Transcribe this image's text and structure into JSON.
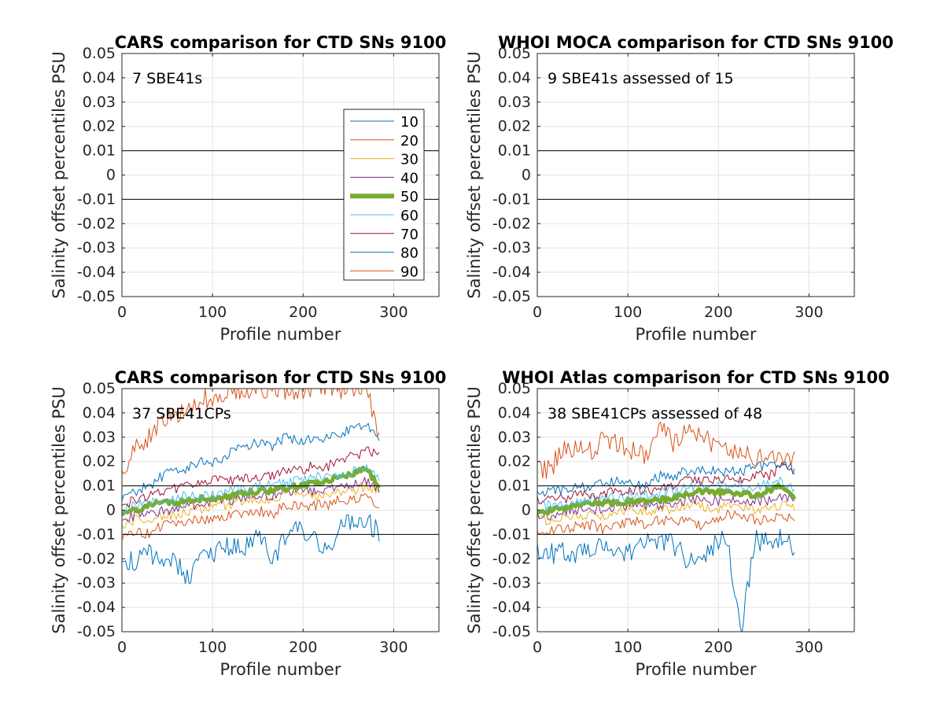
{
  "chart_data": [
    {
      "type": "line",
      "title": "CARS comparison for CTD SNs 9100",
      "xlabel": "Profile number",
      "ylabel": "Salinity offset percentiles PSU",
      "annotation": "7 SBE41s",
      "xlim": [
        0,
        350
      ],
      "ylim": [
        -0.05,
        0.05
      ],
      "xticks": [
        0,
        100,
        200,
        300
      ],
      "xtick_labels": [
        "0",
        "100",
        "200",
        "300"
      ],
      "yticks": [
        -0.05,
        -0.04,
        -0.03,
        -0.02,
        -0.01,
        0,
        0.01,
        0.02,
        0.03,
        0.04,
        0.05
      ],
      "ytick_labels": [
        "-0.05",
        "-0.04",
        "-0.03",
        "-0.02",
        "-0.01",
        "0",
        "0.01",
        "0.02",
        "0.03",
        "0.04",
        "0.05"
      ],
      "reference_lines": [
        0.01,
        -0.01
      ],
      "grid": true,
      "legend_position": "right",
      "series": []
    },
    {
      "type": "line",
      "title": "WHOI MOCA comparison for CTD SNs 9100",
      "xlabel": "Profile number",
      "ylabel": "Salinity offset percentiles PSU",
      "annotation": "9 SBE41s assessed of 15",
      "xlim": [
        0,
        350
      ],
      "ylim": [
        -0.05,
        0.05
      ],
      "xticks": [
        0,
        100,
        200,
        300
      ],
      "xtick_labels": [
        "0",
        "100",
        "200",
        "300"
      ],
      "yticks": [
        -0.05,
        -0.04,
        -0.03,
        -0.02,
        -0.01,
        0,
        0.01,
        0.02,
        0.03,
        0.04,
        0.05
      ],
      "ytick_labels": [
        "-0.05",
        "-0.04",
        "-0.03",
        "-0.02",
        "-0.01",
        "0",
        "0.01",
        "0.02",
        "0.03",
        "0.04",
        "0.05"
      ],
      "reference_lines": [
        0.01,
        -0.01
      ],
      "grid": true,
      "series": []
    },
    {
      "type": "line",
      "title": "CARS comparison for CTD SNs 9100",
      "xlabel": "Profile number",
      "ylabel": "Salinity offset percentiles PSU",
      "annotation": "37 SBE41CPs",
      "xlim": [
        0,
        350
      ],
      "ylim": [
        -0.05,
        0.05
      ],
      "xticks": [
        0,
        100,
        200,
        300
      ],
      "xtick_labels": [
        "0",
        "100",
        "200",
        "300"
      ],
      "yticks": [
        -0.05,
        -0.04,
        -0.03,
        -0.02,
        -0.01,
        0,
        0.01,
        0.02,
        0.03,
        0.04,
        0.05
      ],
      "ytick_labels": [
        "-0.05",
        "-0.04",
        "-0.03",
        "-0.02",
        "-0.01",
        "0",
        "0.01",
        "0.02",
        "0.03",
        "0.04",
        "0.05"
      ],
      "reference_lines": [
        0.01,
        -0.01
      ],
      "grid": true,
      "x": [
        0,
        15,
        30,
        45,
        60,
        75,
        90,
        105,
        120,
        135,
        150,
        165,
        180,
        195,
        210,
        225,
        240,
        255,
        270,
        285
      ],
      "series": [
        {
          "name": "10",
          "values": [
            -0.02,
            -0.022,
            -0.018,
            -0.02,
            -0.022,
            -0.028,
            -0.016,
            -0.018,
            -0.014,
            -0.016,
            -0.01,
            -0.02,
            -0.012,
            -0.008,
            -0.012,
            -0.018,
            -0.006,
            -0.004,
            -0.004,
            -0.01
          ]
        },
        {
          "name": "20",
          "values": [
            -0.012,
            -0.008,
            -0.01,
            -0.006,
            -0.006,
            -0.004,
            -0.004,
            -0.004,
            -0.002,
            -0.002,
            0,
            -0.002,
            0.002,
            0.002,
            0.002,
            0.002,
            0.004,
            0.004,
            0.006,
            0.002
          ]
        },
        {
          "name": "30",
          "values": [
            -0.006,
            -0.004,
            -0.004,
            -0.002,
            -0.002,
            0,
            0,
            0.002,
            0.002,
            0.004,
            0.004,
            0.004,
            0.006,
            0.006,
            0.006,
            0.006,
            0.008,
            0.008,
            0.01,
            0.008
          ]
        },
        {
          "name": "40",
          "values": [
            -0.004,
            -0.002,
            -0.002,
            0,
            0,
            0.002,
            0.002,
            0.004,
            0.004,
            0.006,
            0.006,
            0.006,
            0.008,
            0.008,
            0.008,
            0.008,
            0.01,
            0.01,
            0.012,
            0.008
          ]
        },
        {
          "name": "50",
          "values": [
            -0.002,
            0,
            0.002,
            0.003,
            0.003,
            0.004,
            0.005,
            0.005,
            0.006,
            0.007,
            0.008,
            0.008,
            0.009,
            0.01,
            0.011,
            0.012,
            0.014,
            0.015,
            0.017,
            0.009
          ]
        },
        {
          "name": "60",
          "values": [
            0,
            0.002,
            0.003,
            0.004,
            0.005,
            0.006,
            0.006,
            0.007,
            0.008,
            0.009,
            0.01,
            0.01,
            0.011,
            0.012,
            0.013,
            0.014,
            0.015,
            0.016,
            0.018,
            0.012
          ]
        },
        {
          "name": "70",
          "values": [
            0.002,
            0.004,
            0.006,
            0.008,
            0.009,
            0.01,
            0.012,
            0.012,
            0.012,
            0.013,
            0.014,
            0.014,
            0.016,
            0.016,
            0.018,
            0.018,
            0.02,
            0.022,
            0.024,
            0.024
          ]
        },
        {
          "name": "80",
          "values": [
            0.004,
            0.008,
            0.01,
            0.014,
            0.016,
            0.018,
            0.02,
            0.02,
            0.024,
            0.026,
            0.028,
            0.026,
            0.03,
            0.028,
            0.03,
            0.03,
            0.03,
            0.034,
            0.036,
            0.028
          ]
        },
        {
          "name": "90",
          "values": [
            0.016,
            0.026,
            0.03,
            0.036,
            0.04,
            0.044,
            0.046,
            0.046,
            0.048,
            0.05,
            0.05,
            0.05,
            0.05,
            0.05,
            0.05,
            0.05,
            0.05,
            0.05,
            0.05,
            0.03
          ]
        }
      ]
    },
    {
      "type": "line",
      "title": "WHOI Atlas comparison for CTD SNs 9100",
      "xlabel": "Profile number",
      "ylabel": "Salinity offset percentiles PSU",
      "annotation": "38 SBE41CPs assessed of 48",
      "xlim": [
        0,
        350
      ],
      "ylim": [
        -0.05,
        0.05
      ],
      "xticks": [
        0,
        100,
        200,
        300
      ],
      "xtick_labels": [
        "0",
        "100",
        "200",
        "300"
      ],
      "yticks": [
        -0.05,
        -0.04,
        -0.03,
        -0.02,
        -0.01,
        0,
        0.01,
        0.02,
        0.03,
        0.04,
        0.05
      ],
      "ytick_labels": [
        "-0.05",
        "-0.04",
        "-0.03",
        "-0.02",
        "-0.01",
        "0",
        "0.01",
        "0.02",
        "0.03",
        "0.04",
        "0.05"
      ],
      "reference_lines": [
        0.01,
        -0.01
      ],
      "grid": true,
      "x": [
        0,
        15,
        30,
        45,
        60,
        75,
        90,
        105,
        120,
        135,
        150,
        165,
        180,
        195,
        210,
        225,
        240,
        255,
        270,
        285
      ],
      "series": [
        {
          "name": "10",
          "values": [
            -0.016,
            -0.018,
            -0.016,
            -0.018,
            -0.016,
            -0.014,
            -0.016,
            -0.018,
            -0.012,
            -0.012,
            -0.014,
            -0.02,
            -0.022,
            -0.014,
            -0.012,
            -0.05,
            -0.012,
            -0.014,
            -0.012,
            -0.016
          ]
        },
        {
          "name": "20",
          "values": [
            -0.01,
            -0.008,
            -0.008,
            -0.006,
            -0.006,
            -0.008,
            -0.006,
            -0.004,
            -0.006,
            -0.004,
            -0.004,
            -0.004,
            -0.006,
            -0.004,
            -0.002,
            -0.002,
            -0.004,
            -0.004,
            -0.002,
            -0.004
          ]
        },
        {
          "name": "30",
          "values": [
            -0.004,
            -0.004,
            -0.002,
            -0.002,
            -0.002,
            -0.002,
            0,
            0,
            0,
            0,
            0,
            0.002,
            0.002,
            0,
            0.002,
            0.002,
            0,
            0.002,
            0.002,
            0
          ]
        },
        {
          "name": "40",
          "values": [
            -0.002,
            -0.002,
            0,
            0,
            0,
            0,
            0.002,
            0.002,
            0.002,
            0.002,
            0.002,
            0.004,
            0.004,
            0.004,
            0.004,
            0.004,
            0.004,
            0.004,
            0.006,
            0.004
          ]
        },
        {
          "name": "50",
          "values": [
            -0.001,
            0,
            0.001,
            0.002,
            0.003,
            0.003,
            0.003,
            0.004,
            0.004,
            0.004,
            0.005,
            0.007,
            0.008,
            0.007,
            0.008,
            0.007,
            0.006,
            0.008,
            0.01,
            0.004
          ]
        },
        {
          "name": "60",
          "values": [
            0.001,
            0.002,
            0.003,
            0.004,
            0.004,
            0.005,
            0.005,
            0.006,
            0.006,
            0.007,
            0.008,
            0.009,
            0.01,
            0.01,
            0.01,
            0.01,
            0.01,
            0.011,
            0.012,
            0.008
          ]
        },
        {
          "name": "70",
          "values": [
            0.004,
            0.004,
            0.005,
            0.006,
            0.006,
            0.007,
            0.008,
            0.008,
            0.008,
            0.009,
            0.01,
            0.012,
            0.012,
            0.012,
            0.013,
            0.012,
            0.014,
            0.014,
            0.018,
            0.014
          ]
        },
        {
          "name": "80",
          "values": [
            0.006,
            0.008,
            0.008,
            0.01,
            0.01,
            0.012,
            0.012,
            0.012,
            0.01,
            0.014,
            0.014,
            0.016,
            0.016,
            0.016,
            0.016,
            0.016,
            0.018,
            0.018,
            0.02,
            0.016
          ]
        },
        {
          "name": "90",
          "values": [
            0.016,
            0.018,
            0.024,
            0.028,
            0.024,
            0.03,
            0.026,
            0.024,
            0.022,
            0.036,
            0.028,
            0.034,
            0.03,
            0.028,
            0.024,
            0.024,
            0.02,
            0.022,
            0.022,
            0.022
          ]
        }
      ]
    }
  ],
  "legend": {
    "entries": [
      "10",
      "20",
      "30",
      "40",
      "50",
      "60",
      "70",
      "80",
      "90"
    ],
    "colors": [
      "#0072BD",
      "#D95319",
      "#EDB120",
      "#7E2F8E",
      "#77AC30",
      "#4DBEEE",
      "#A2142F",
      "#0072BD",
      "#D95319"
    ]
  }
}
